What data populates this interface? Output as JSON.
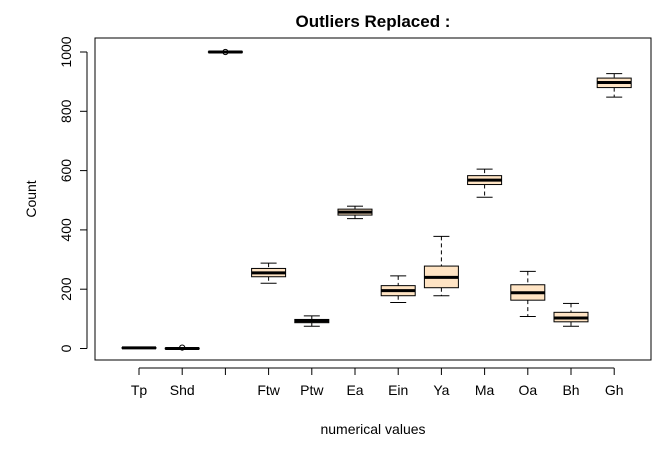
{
  "chart_data": {
    "type": "boxplot",
    "title": "Outliers Replaced :",
    "xlabel": "numerical values",
    "ylabel": "Count",
    "ylim": [
      -40,
      1050
    ],
    "yticks": [
      0,
      200,
      400,
      600,
      800,
      1000
    ],
    "box_color": "#ffe4c4",
    "categories": [
      "Tp",
      "Shd",
      "",
      "Ftw",
      "Ptw",
      "Ea",
      "Ein",
      "Ya",
      "Ma",
      "Oa",
      "Bh",
      "Gh"
    ],
    "boxes": [
      {
        "label": "Tp",
        "min": 0,
        "q1": 1,
        "median": 2,
        "q3": 3,
        "max": 5,
        "outliers": []
      },
      {
        "label": "Shd",
        "min": -2,
        "q1": -1,
        "median": 0,
        "q3": 1,
        "max": 2,
        "outliers": [
          3
        ]
      },
      {
        "label": "",
        "min": 997,
        "q1": 999,
        "median": 1000,
        "q3": 1001,
        "max": 1003,
        "outliers": [
          1000
        ]
      },
      {
        "label": "Ftw",
        "min": 220,
        "q1": 242,
        "median": 255,
        "q3": 270,
        "max": 288,
        "outliers": []
      },
      {
        "label": "Ptw",
        "min": 75,
        "q1": 87,
        "median": 93,
        "q3": 98,
        "max": 110,
        "outliers": []
      },
      {
        "label": "Ea",
        "min": 438,
        "q1": 450,
        "median": 460,
        "q3": 470,
        "max": 480,
        "outliers": []
      },
      {
        "label": "Ein",
        "min": 155,
        "q1": 178,
        "median": 195,
        "q3": 212,
        "max": 245,
        "outliers": []
      },
      {
        "label": "Ya",
        "min": 178,
        "q1": 205,
        "median": 240,
        "q3": 278,
        "max": 378,
        "outliers": []
      },
      {
        "label": "Ma",
        "min": 510,
        "q1": 553,
        "median": 568,
        "q3": 583,
        "max": 605,
        "outliers": []
      },
      {
        "label": "Oa",
        "min": 108,
        "q1": 163,
        "median": 188,
        "q3": 215,
        "max": 260,
        "outliers": []
      },
      {
        "label": "Bh",
        "min": 75,
        "q1": 90,
        "median": 103,
        "q3": 122,
        "max": 152,
        "outliers": []
      },
      {
        "label": "Gh",
        "min": 848,
        "q1": 880,
        "median": 897,
        "q3": 912,
        "max": 927,
        "outliers": []
      }
    ]
  }
}
